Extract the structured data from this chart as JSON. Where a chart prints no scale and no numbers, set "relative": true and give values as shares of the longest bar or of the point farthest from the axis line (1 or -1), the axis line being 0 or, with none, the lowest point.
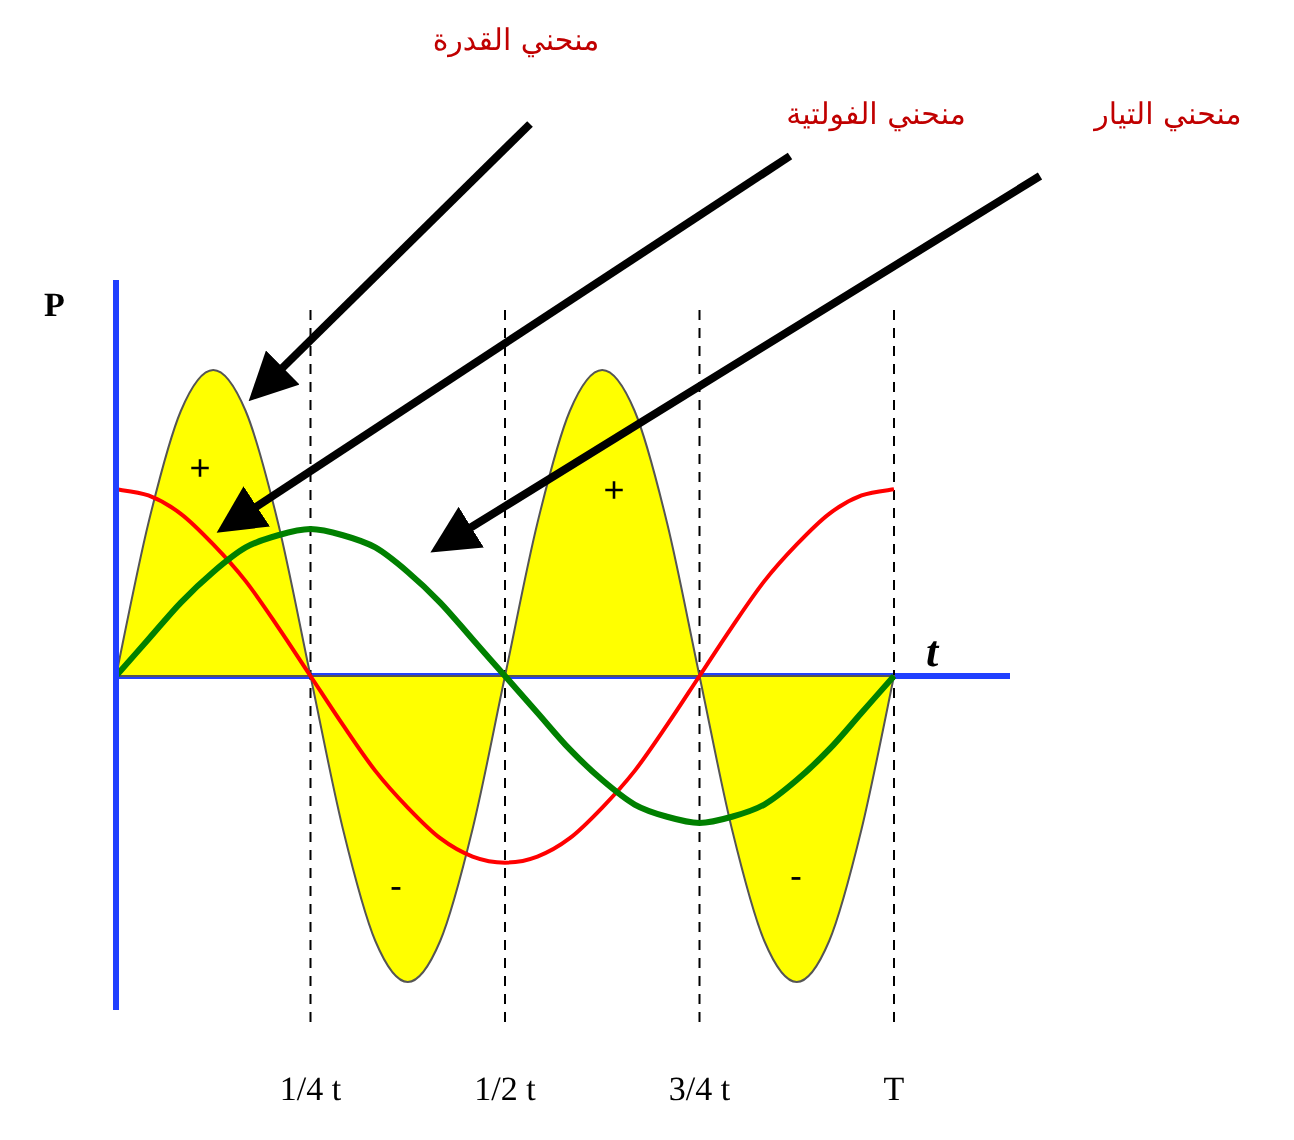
{
  "chart_data": {
    "type": "line",
    "relative": true,
    "xlabel": "t",
    "ylabel": "P",
    "categories": [
      null,
      null,
      null,
      null,
      null,
      null,
      "1/4 t",
      null,
      null,
      null,
      null,
      null,
      "1/2 t",
      null,
      null,
      null,
      null,
      null,
      "3/4 t",
      null,
      null,
      null,
      null,
      null,
      "T"
    ],
    "series": [
      {
        "type": "area",
        "color": "#ffff00",
        "values": [
          0,
          0.5,
          0.866,
          1,
          0.866,
          0.5,
          0,
          -0.5,
          -0.866,
          -1,
          -0.866,
          -0.5,
          0,
          0.5,
          0.866,
          1,
          0.866,
          0.5,
          0,
          -0.5,
          -0.866,
          -1,
          -0.866,
          -0.5,
          0
        ]
      },
      {
        "color": "#ff0000",
        "values": [
          0.61,
          0.59,
          0.53,
          0.43,
          0.31,
          0.16,
          0,
          -0.16,
          -0.31,
          -0.43,
          -0.53,
          -0.59,
          -0.61,
          -0.59,
          -0.53,
          -0.43,
          -0.31,
          -0.16,
          0,
          0.16,
          0.31,
          0.43,
          0.53,
          0.59,
          0.61
        ]
      },
      {
        "color": "#008000",
        "values": [
          0,
          0.12,
          0.24,
          0.34,
          0.42,
          0.46,
          0.48,
          0.46,
          0.42,
          0.34,
          0.24,
          0.12,
          0,
          -0.12,
          -0.24,
          -0.34,
          -0.42,
          -0.46,
          -0.48,
          -0.46,
          -0.42,
          -0.34,
          -0.24,
          -0.12,
          0
        ]
      }
    ],
    "ref_lines": [
      {
        "axis": "y",
        "value": 0,
        "color": "#2040ff"
      },
      {
        "axis": "x",
        "value": "1/4 t",
        "line_style": "dashed",
        "color": "#000000"
      },
      {
        "axis": "x",
        "value": "1/2 t",
        "line_style": "dashed",
        "color": "#000000"
      },
      {
        "axis": "x",
        "value": "3/4 t",
        "line_style": "dashed",
        "color": "#000000"
      },
      {
        "axis": "x",
        "value": "T",
        "line_style": "dashed",
        "color": "#000000"
      }
    ],
    "annotations": [
      "منحني القدرة",
      "منحني الفولتية",
      "منحني التيار",
      "+",
      "+",
      "-",
      "-"
    ],
    "marker": "none",
    "line_style": "solid"
  }
}
